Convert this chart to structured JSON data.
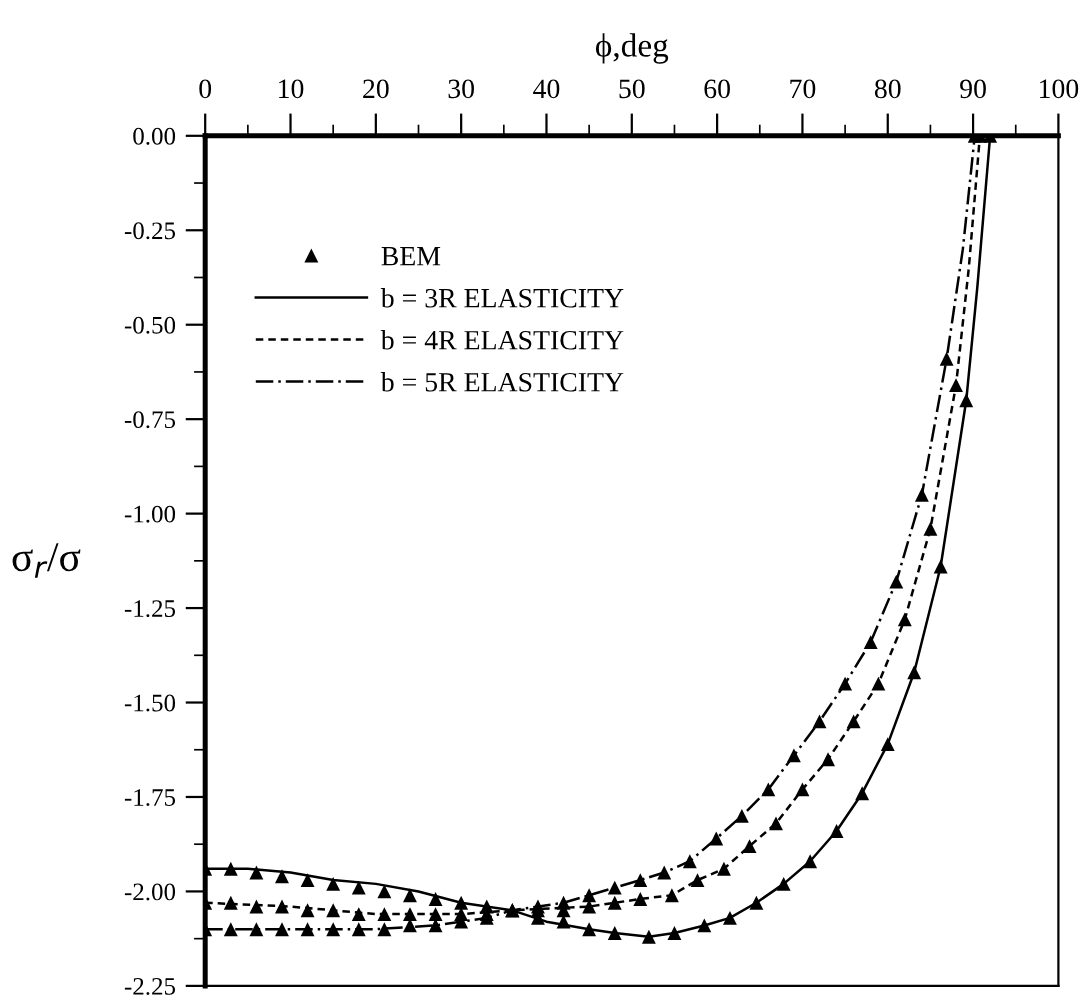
{
  "chart_data": {
    "type": "line",
    "xlabel": "ϕ,deg",
    "ylabel": "σ$_{r}$/σ",
    "xlim": [
      0,
      100
    ],
    "xticks": [
      0,
      10,
      20,
      30,
      40,
      50,
      60,
      70,
      80,
      90,
      100
    ],
    "ylim": [
      -2.25,
      0
    ],
    "yticks": [
      {
        "value": -2.25,
        "label": "-2.25"
      },
      {
        "value": -2.0,
        "label": "-2.00"
      },
      {
        "value": -1.75,
        "label": "-1.75"
      },
      {
        "value": -1.5,
        "label": "-1.50"
      },
      {
        "value": -1.25,
        "label": "-1.25"
      },
      {
        "value": -1.0,
        "label": "-1.00"
      },
      {
        "value": -0.75,
        "label": "-0.75"
      },
      {
        "value": -0.5,
        "label": "-0.50"
      },
      {
        "value": -0.25,
        "label": "-0.25"
      },
      {
        "value": 0,
        "label": "0.00"
      }
    ],
    "legend": "top left",
    "grid": false,
    "series": [
      {
        "name": "BEM",
        "type": "scatter",
        "marker": "triangle",
        "color": "#000000",
        "x": [
          0,
          3,
          6,
          9,
          12,
          15,
          18,
          21,
          24,
          27,
          30,
          33,
          36,
          39,
          42,
          45,
          48,
          52,
          55,
          58.5,
          61.5,
          64.6,
          67.8,
          70.9,
          74,
          77,
          80,
          83.1,
          86.2,
          89.2,
          92,
          0,
          3,
          6,
          9,
          12,
          15,
          18,
          21,
          24,
          27,
          30,
          33,
          36,
          39,
          42,
          45,
          48,
          51,
          54.7,
          57.7,
          60.8,
          63.8,
          66.9,
          70,
          73,
          76,
          78.9,
          82,
          85,
          88,
          90.8,
          0,
          3,
          6,
          9,
          12,
          15,
          18,
          21,
          24,
          27,
          30,
          33,
          36,
          39,
          42,
          45,
          48,
          51,
          53.8,
          56.8,
          59.9,
          62.9,
          66,
          69,
          72,
          75,
          78,
          81,
          84,
          86.9,
          90.2
        ],
        "values": [
          -1.94,
          -1.94,
          -1.95,
          -1.96,
          -1.97,
          -1.98,
          -1.99,
          -2.0,
          -2.01,
          -2.02,
          -2.03,
          -2.04,
          -2.05,
          -2.07,
          -2.08,
          -2.1,
          -2.11,
          -2.12,
          -2.11,
          -2.09,
          -2.07,
          -2.03,
          -1.98,
          -1.92,
          -1.84,
          -1.74,
          -1.61,
          -1.42,
          -1.14,
          -0.7,
          0,
          -2.03,
          -2.03,
          -2.04,
          -2.04,
          -2.05,
          -2.05,
          -2.06,
          -2.06,
          -2.06,
          -2.06,
          -2.06,
          -2.06,
          -2.05,
          -2.05,
          -2.05,
          -2.04,
          -2.03,
          -2.02,
          -2.01,
          -1.97,
          -1.94,
          -1.88,
          -1.82,
          -1.73,
          -1.65,
          -1.55,
          -1.45,
          -1.28,
          -1.04,
          -0.66,
          0,
          -2.1,
          -2.1,
          -2.1,
          -2.1,
          -2.1,
          -2.1,
          -2.1,
          -2.1,
          -2.09,
          -2.09,
          -2.08,
          -2.07,
          -2.05,
          -2.04,
          -2.03,
          -2.01,
          -1.99,
          -1.97,
          -1.95,
          -1.92,
          -1.86,
          -1.8,
          -1.73,
          -1.64,
          -1.55,
          -1.45,
          -1.34,
          -1.18,
          -0.95,
          -0.59,
          0
        ]
      },
      {
        "name": "b = 3R ELASTICITY",
        "line_style": "solid",
        "color": "#000000",
        "x": [
          0,
          5,
          10,
          15,
          20,
          25,
          30,
          36,
          40,
          45,
          48,
          52,
          55,
          58.5,
          61.5,
          64.6,
          67.8,
          70.9,
          74,
          77,
          80,
          83.1,
          86.2,
          89.2,
          90.5,
          92
        ],
        "values": [
          -1.94,
          -1.94,
          -1.95,
          -1.97,
          -1.98,
          -2.0,
          -2.03,
          -2.05,
          -2.08,
          -2.1,
          -2.11,
          -2.12,
          -2.11,
          -2.09,
          -2.07,
          -2.03,
          -1.98,
          -1.92,
          -1.84,
          -1.74,
          -1.61,
          -1.42,
          -1.14,
          -0.7,
          -0.4,
          0
        ]
      },
      {
        "name": "b = 4R ELASTICITY",
        "line_style": "dashed",
        "color": "#000000",
        "x": [
          0,
          10,
          20,
          30,
          36,
          45,
          51,
          54.7,
          57.7,
          60.8,
          63.8,
          66.9,
          70,
          73,
          76,
          78.9,
          82,
          85,
          88,
          89.5,
          90.8
        ],
        "values": [
          -2.03,
          -2.04,
          -2.06,
          -2.06,
          -2.05,
          -2.04,
          -2.02,
          -2.01,
          -1.97,
          -1.94,
          -1.88,
          -1.82,
          -1.73,
          -1.65,
          -1.55,
          -1.45,
          -1.28,
          -1.04,
          -0.66,
          -0.35,
          0
        ]
      },
      {
        "name": "b = 5R ELASTICITY",
        "line_style": "dashdot",
        "color": "#000000",
        "x": [
          0,
          10,
          20,
          27,
          33,
          36,
          42,
          45,
          48,
          51,
          53.8,
          56.8,
          59.9,
          62.9,
          66,
          69,
          72,
          75,
          78,
          81,
          84,
          86.9,
          88.8,
          90.2
        ],
        "values": [
          -2.1,
          -2.1,
          -2.1,
          -2.09,
          -2.07,
          -2.05,
          -2.03,
          -2.01,
          -1.99,
          -1.97,
          -1.95,
          -1.92,
          -1.86,
          -1.8,
          -1.73,
          -1.64,
          -1.55,
          -1.45,
          -1.34,
          -1.18,
          -0.95,
          -0.59,
          -0.3,
          0
        ]
      }
    ]
  }
}
